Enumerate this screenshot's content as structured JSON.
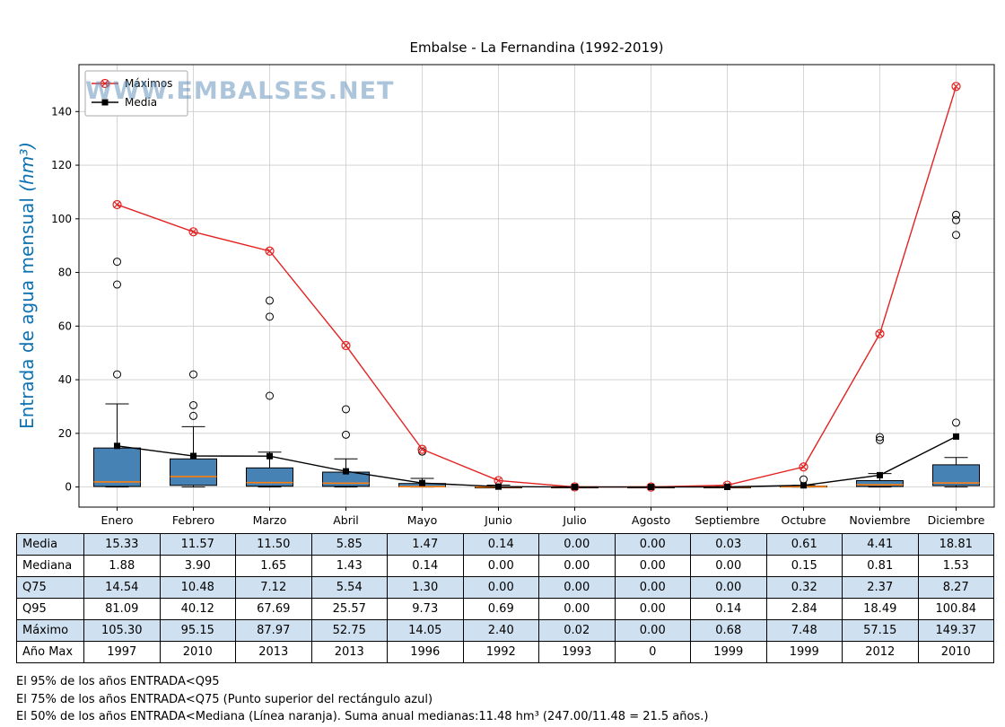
{
  "title": "Embalse - La Fernandina (1992-2019)",
  "watermark": "WWW.EMBALSES.NET",
  "chart_data": {
    "type": "boxplot",
    "title": "Embalse - La Fernandina (1992-2019)",
    "xlabel": "",
    "ylabel": "Entrada de agua mensual",
    "ylabel_unit": "(hm³)",
    "grid": true,
    "legend_position": "upper-left",
    "categories": [
      "Enero",
      "Febrero",
      "Marzo",
      "Abril",
      "Mayo",
      "Junio",
      "Julio",
      "Agosto",
      "Septiembre",
      "Octubre",
      "Noviembre",
      "Diciembre"
    ],
    "yticks": [
      0,
      20,
      40,
      60,
      80,
      100,
      120,
      140
    ],
    "ylim": [
      -7.5,
      157.5
    ],
    "series": [
      {
        "name": "Máximos",
        "color": "#e32222",
        "marker": "circle-x",
        "values": [
          105.3,
          95.15,
          87.97,
          52.75,
          14.05,
          2.4,
          0.02,
          0.0,
          0.68,
          7.48,
          57.15,
          149.37
        ]
      },
      {
        "name": "Media",
        "color": "#000000",
        "marker": "square",
        "values": [
          15.33,
          11.57,
          11.5,
          5.85,
          1.47,
          0.14,
          0.0,
          0.0,
          0.03,
          0.61,
          4.41,
          18.81
        ]
      }
    ],
    "boxes": [
      {
        "q1": 0.2,
        "median": 1.88,
        "q3": 14.54,
        "lo": 0.0,
        "hi": 31.0,
        "outliers": [
          42,
          75.5,
          84
        ]
      },
      {
        "q1": 0.6,
        "median": 3.9,
        "q3": 10.48,
        "lo": 0.0,
        "hi": 22.5,
        "outliers": [
          26.5,
          30.5,
          42
        ]
      },
      {
        "q1": 0.3,
        "median": 1.65,
        "q3": 7.12,
        "lo": 0.0,
        "hi": 13.0,
        "outliers": [
          34,
          63.5,
          69.5
        ]
      },
      {
        "q1": 0.25,
        "median": 1.43,
        "q3": 5.54,
        "lo": 0.0,
        "hi": 10.5,
        "outliers": [
          19.5,
          29
        ]
      },
      {
        "q1": 0.02,
        "median": 0.14,
        "q3": 1.3,
        "lo": 0.0,
        "hi": 3.2,
        "outliers": [
          13.2
        ]
      },
      {
        "q1": 0.0,
        "median": 0.0,
        "q3": 0.0,
        "lo": 0.0,
        "hi": 0.69,
        "outliers": []
      },
      {
        "q1": 0.0,
        "median": 0.0,
        "q3": 0.0,
        "lo": 0.0,
        "hi": 0.02,
        "outliers": []
      },
      {
        "q1": 0.0,
        "median": 0.0,
        "q3": 0.0,
        "lo": 0.0,
        "hi": 0.0,
        "outliers": []
      },
      {
        "q1": 0.0,
        "median": 0.0,
        "q3": 0.0,
        "lo": 0.0,
        "hi": 0.14,
        "outliers": []
      },
      {
        "q1": 0.02,
        "median": 0.15,
        "q3": 0.32,
        "lo": 0.0,
        "hi": 0.6,
        "outliers": [
          2.84
        ]
      },
      {
        "q1": 0.2,
        "median": 0.81,
        "q3": 2.37,
        "lo": 0.0,
        "hi": 5.0,
        "outliers": [
          17.5,
          18.6
        ]
      },
      {
        "q1": 0.5,
        "median": 1.53,
        "q3": 8.27,
        "lo": 0.0,
        "hi": 11.0,
        "outliers": [
          24,
          94,
          99.5,
          101.5
        ]
      }
    ],
    "colors": {
      "box": "#4682b4",
      "median": "#ff7f0e",
      "grid": "#cccccc",
      "axis": "#000000",
      "ylabel": "#0d72b2",
      "watermark": "#5b8db8",
      "table_alt": "#cfe0f0"
    }
  },
  "table": {
    "rows": [
      {
        "label": "Media",
        "values": [
          "15.33",
          "11.57",
          "11.50",
          "5.85",
          "1.47",
          "0.14",
          "0.00",
          "0.00",
          "0.03",
          "0.61",
          "4.41",
          "18.81"
        ]
      },
      {
        "label": "Mediana",
        "values": [
          "1.88",
          "3.90",
          "1.65",
          "1.43",
          "0.14",
          "0.00",
          "0.00",
          "0.00",
          "0.00",
          "0.15",
          "0.81",
          "1.53"
        ]
      },
      {
        "label": "Q75",
        "values": [
          "14.54",
          "10.48",
          "7.12",
          "5.54",
          "1.30",
          "0.00",
          "0.00",
          "0.00",
          "0.00",
          "0.32",
          "2.37",
          "8.27"
        ]
      },
      {
        "label": "Q95",
        "values": [
          "81.09",
          "40.12",
          "67.69",
          "25.57",
          "9.73",
          "0.69",
          "0.00",
          "0.00",
          "0.14",
          "2.84",
          "18.49",
          "100.84"
        ]
      },
      {
        "label": "Máximo",
        "values": [
          "105.30",
          "95.15",
          "87.97",
          "52.75",
          "14.05",
          "2.40",
          "0.02",
          "0.00",
          "0.68",
          "7.48",
          "57.15",
          "149.37"
        ]
      },
      {
        "label": "Año Max",
        "values": [
          "1997",
          "2010",
          "2013",
          "2013",
          "1996",
          "1992",
          "1993",
          "0",
          "1999",
          "1999",
          "2012",
          "2010"
        ]
      }
    ]
  },
  "footnotes": [
    "El 95% de los años ENTRADA<Q95",
    "El 75% de los años ENTRADA<Q75 (Punto superior del rectángulo azul)",
    "El 50% de los años ENTRADA<Mediana (Línea naranja). Suma anual medianas:11.48 hm³ (247.00/11.48 = 21.5 años.)"
  ]
}
